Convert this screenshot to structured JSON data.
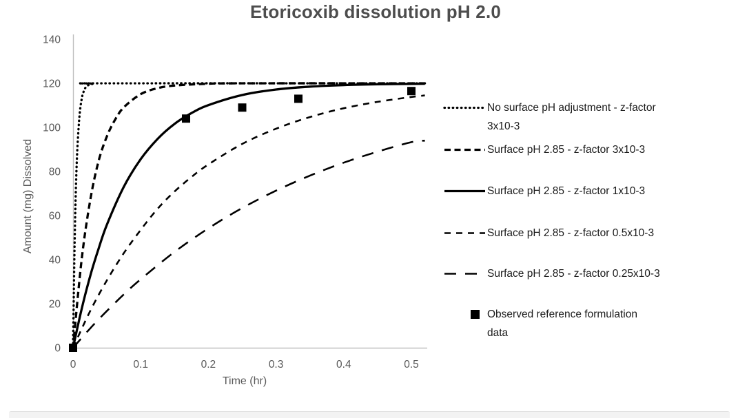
{
  "page": {
    "background": "#ffffff",
    "bottom_bar_color": "#f3f3f3"
  },
  "chart_data": {
    "type": "line",
    "title": "Etoricoxib dissolution pH 2.0",
    "xlabel": "Time (hr)",
    "ylabel": "Amount (mg) Dissolved",
    "xlim": [
      0,
      0.523
    ],
    "ylim": [
      0,
      140
    ],
    "grid": false,
    "legend_position": "right-outside",
    "line_color": "#000000",
    "axis_line_color": "#bfbfbf",
    "axis_text_color": "#595959",
    "x_ticks": {
      "labels": [
        "0",
        "0.1",
        "0.2",
        "0.3",
        "0.4",
        "0.5"
      ],
      "values": [
        0,
        0.1,
        0.2,
        0.3,
        0.4,
        0.5
      ]
    },
    "y_ticks": {
      "labels": [
        "0",
        "20",
        "40",
        "60",
        "80",
        "100",
        "120",
        "140"
      ],
      "values": [
        0,
        20,
        40,
        60,
        80,
        100,
        120,
        140
      ]
    },
    "series": [
      {
        "name": "No surface pH adjustment - z-factor 3x10-3",
        "line_style": "dotted",
        "plateau": 120,
        "points": [
          [
            0,
            0
          ],
          [
            0.0025,
            50.6
          ],
          [
            0.005,
            80
          ],
          [
            0.0075,
            96.5
          ],
          [
            0.01,
            106.7
          ],
          [
            0.0125,
            112.4
          ],
          [
            0.015,
            115.7
          ],
          [
            0.02,
            118.6
          ],
          [
            0.03,
            119.8
          ],
          [
            0.05,
            120
          ],
          [
            0.52,
            120
          ]
        ]
      },
      {
        "name": "Surface pH 2.85 - z-factor 3x10-3",
        "line_style": "dash-heavy",
        "plateau": 120,
        "points": [
          [
            0,
            0
          ],
          [
            0.0125,
            39.5
          ],
          [
            0.025,
            66.3
          ],
          [
            0.0375,
            84.4
          ],
          [
            0.05,
            95.9
          ],
          [
            0.0625,
            103.7
          ],
          [
            0.075,
            109.1
          ],
          [
            0.1,
            115.1
          ],
          [
            0.125,
            117.8
          ],
          [
            0.15,
            119
          ],
          [
            0.2,
            119.8
          ],
          [
            0.25,
            120
          ],
          [
            0.52,
            120
          ]
        ]
      },
      {
        "name": "Surface pH 2.85 - z-factor 1x10-3",
        "line_style": "solid",
        "plateau": 120,
        "points": [
          [
            0,
            0
          ],
          [
            0.0125,
            17.3
          ],
          [
            0.025,
            32.2
          ],
          [
            0.0375,
            44.7
          ],
          [
            0.05,
            55.8
          ],
          [
            0.075,
            73
          ],
          [
            0.1,
            85.6
          ],
          [
            0.125,
            94.8
          ],
          [
            0.15,
            101.6
          ],
          [
            0.175,
            106.5
          ],
          [
            0.2,
            110.1
          ],
          [
            0.25,
            114.7
          ],
          [
            0.3,
            117.2
          ],
          [
            0.35,
            118.5
          ],
          [
            0.4,
            119.2
          ],
          [
            0.45,
            119.6
          ],
          [
            0.52,
            119.8
          ]
        ]
      },
      {
        "name": "Surface pH 2.85 - z-factor 0.5x10-3",
        "line_style": "dash-short",
        "plateau": 120,
        "points": [
          [
            0,
            0
          ],
          [
            0.025,
            16.5
          ],
          [
            0.05,
            30.6
          ],
          [
            0.075,
            42.9
          ],
          [
            0.1,
            53.5
          ],
          [
            0.125,
            63.1
          ],
          [
            0.15,
            70.9
          ],
          [
            0.175,
            77.5
          ],
          [
            0.2,
            83.2
          ],
          [
            0.25,
            92.5
          ],
          [
            0.3,
            99.4
          ],
          [
            0.35,
            104.7
          ],
          [
            0.4,
            108.7
          ],
          [
            0.45,
            111.6
          ],
          [
            0.5,
            113.8
          ],
          [
            0.52,
            114.5
          ]
        ]
      },
      {
        "name": "Surface pH 2.85 - z-factor 0.25x10-3",
        "line_style": "dash-long",
        "plateau": 120,
        "points": [
          [
            0,
            0
          ],
          [
            0.025,
            8.7
          ],
          [
            0.05,
            16.7
          ],
          [
            0.075,
            24.2
          ],
          [
            0.1,
            31.1
          ],
          [
            0.15,
            43.5
          ],
          [
            0.2,
            54.2
          ],
          [
            0.25,
            63.4
          ],
          [
            0.3,
            71.3
          ],
          [
            0.35,
            78.1
          ],
          [
            0.4,
            84
          ],
          [
            0.45,
            89
          ],
          [
            0.5,
            93.3
          ],
          [
            0.52,
            94
          ]
        ]
      }
    ],
    "observed_series": {
      "name": "Observed reference formulation data",
      "marker": "filled-square",
      "color": "#000000",
      "points": [
        [
          0,
          0
        ],
        [
          0.167,
          104
        ],
        [
          0.25,
          109
        ],
        [
          0.333,
          113
        ],
        [
          0.5,
          116.5
        ]
      ]
    }
  },
  "legend": {
    "text_color": "#1a1a1a",
    "items": [
      {
        "id": "dotted",
        "line1": "No surface pH adjustment - z-factor",
        "line2": "3x10-3"
      },
      {
        "id": "dash-heavy",
        "line1": "Surface pH 2.85 - z-factor 3x10-3",
        "line2": ""
      },
      {
        "id": "solid",
        "line1": "Surface pH 2.85 - z-factor 1x10-3",
        "line2": ""
      },
      {
        "id": "dash-short",
        "line1": "Surface pH 2.85 - z-factor 0.5x10-3",
        "line2": ""
      },
      {
        "id": "dash-long",
        "line1": "Surface pH 2.85 - z-factor 0.25x10-3",
        "line2": ""
      },
      {
        "id": "marker-square",
        "line1": "Observed reference formulation",
        "line2": "data"
      }
    ]
  }
}
